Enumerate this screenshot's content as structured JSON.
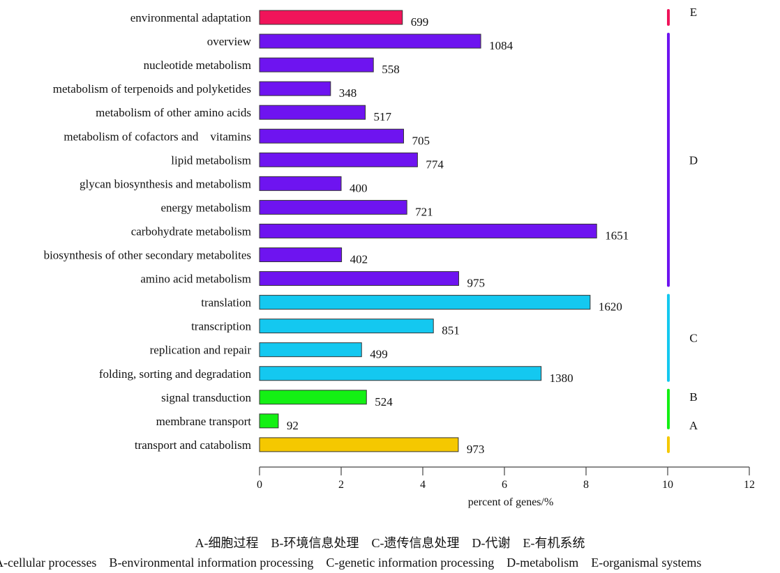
{
  "chart_data": {
    "type": "bar",
    "orientation": "horizontal",
    "xlabel": "percent of genes/%",
    "xlim": [
      0,
      12
    ],
    "xticks": [
      0,
      2,
      4,
      6,
      8,
      10,
      12
    ],
    "categories": [
      "environmental adaptation",
      "overview",
      "nucleotide metabolism",
      "metabolism of terpenoids and polyketides",
      "metabolism of other amino acids",
      "metabolism of cofactors and    vitamins",
      "lipid metabolism",
      "glycan biosynthesis and metabolism",
      "energy metabolism",
      "carbohydrate metabolism",
      "biosynthesis of other secondary metabolites",
      "amino acid metabolism",
      "translation",
      "transcription",
      "replication and repair",
      "folding, sorting and degradation",
      "signal transduction",
      "membrane transport",
      "transport and catabolism"
    ],
    "values": [
      3.5,
      5.42,
      2.79,
      1.74,
      2.59,
      3.53,
      3.87,
      2.0,
      3.61,
      8.26,
      2.01,
      4.88,
      8.1,
      4.26,
      2.5,
      6.9,
      2.62,
      0.46,
      4.87
    ],
    "data_labels": [
      "699",
      "1084",
      "558",
      "348",
      "517",
      "705",
      "774",
      "400",
      "721",
      "1651",
      "402",
      "975",
      "1620",
      "851",
      "499",
      "1380",
      "524",
      "92",
      "973"
    ],
    "groups": [
      "E",
      "D",
      "D",
      "D",
      "D",
      "D",
      "D",
      "D",
      "D",
      "D",
      "D",
      "D",
      "C",
      "C",
      "C",
      "C",
      "B",
      "B",
      "A"
    ],
    "group_colors": {
      "E": "#f0145a",
      "D": "#6e14f0",
      "C": "#14c8f0",
      "B": "#14f014",
      "A": "#f5c800"
    },
    "group_brackets": [
      {
        "letter": "E",
        "from": 0,
        "to": 0
      },
      {
        "letter": "D",
        "from": 1,
        "to": 11
      },
      {
        "letter": "C",
        "from": 12,
        "to": 15
      },
      {
        "letter": "B",
        "from": 16,
        "to": 17
      },
      {
        "letter": "A",
        "from": 18,
        "to": 18
      }
    ],
    "legend_lines": [
      "A-细胞过程    B-环境信息处理    C-遗传信息处理    D-代谢    E-有机系统",
      "A-cellular processes    B-environmental information processing    C-genetic information processing    D-metabolism    E-organismal systems"
    ]
  }
}
